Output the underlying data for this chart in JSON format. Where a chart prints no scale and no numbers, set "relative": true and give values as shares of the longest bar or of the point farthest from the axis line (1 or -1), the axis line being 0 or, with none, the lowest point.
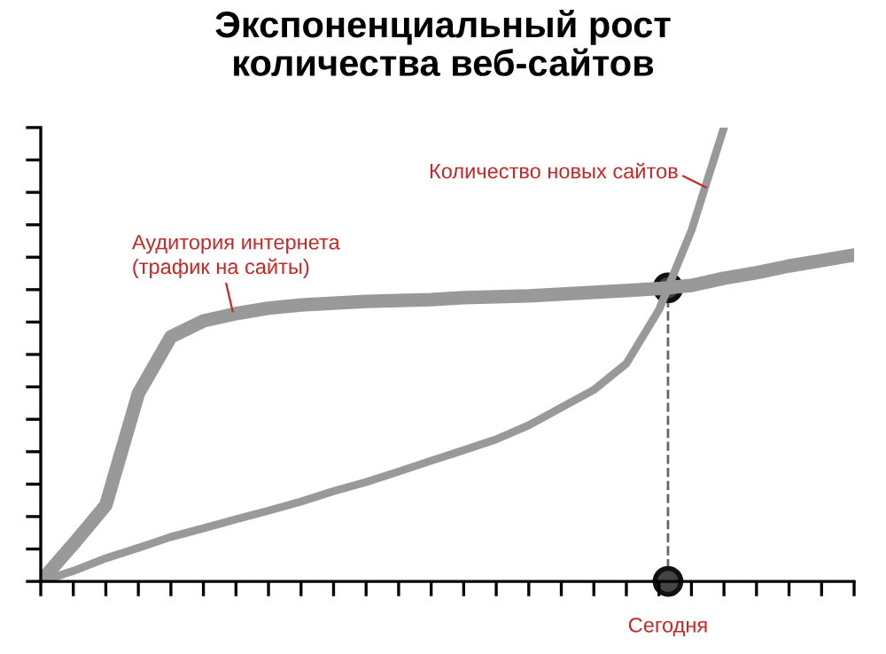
{
  "chart_data": {
    "type": "line",
    "title": "Экспоненциальный рост\nколичества веб-сайтов",
    "relative": true,
    "categories": [
      null,
      null,
      null,
      null,
      null,
      null,
      null,
      null,
      null,
      null,
      null,
      null,
      null,
      null,
      null,
      null,
      null,
      null,
      null,
      null,
      null,
      null,
      null,
      null,
      null,
      null
    ],
    "tick_labels": false,
    "legend": false,
    "line_style": "solid",
    "series": [
      {
        "name": "Аудитория интернета\n(трафик на сайты)",
        "color": "#999999",
        "values": [
          0,
          0.082,
          0.168,
          0.414,
          0.539,
          0.574,
          0.59,
          0.602,
          0.609,
          0.613,
          0.617,
          0.619,
          0.621,
          0.625,
          0.627,
          0.629,
          0.633,
          0.637,
          0.641,
          0.645,
          0.652,
          0.668,
          0.68,
          0.695,
          0.707,
          0.719
        ]
      },
      {
        "name": "Количество новых сайтов",
        "color": "#999999",
        "values": [
          0,
          0.023,
          0.051,
          0.074,
          0.098,
          0.117,
          0.137,
          0.156,
          0.176,
          0.199,
          0.219,
          0.242,
          0.266,
          0.289,
          0.313,
          0.344,
          0.383,
          0.422,
          0.48,
          0.598,
          0.773,
          1,
          null,
          null,
          null,
          null
        ]
      }
    ],
    "annotations": [
      "Сегодня"
    ]
  }
}
